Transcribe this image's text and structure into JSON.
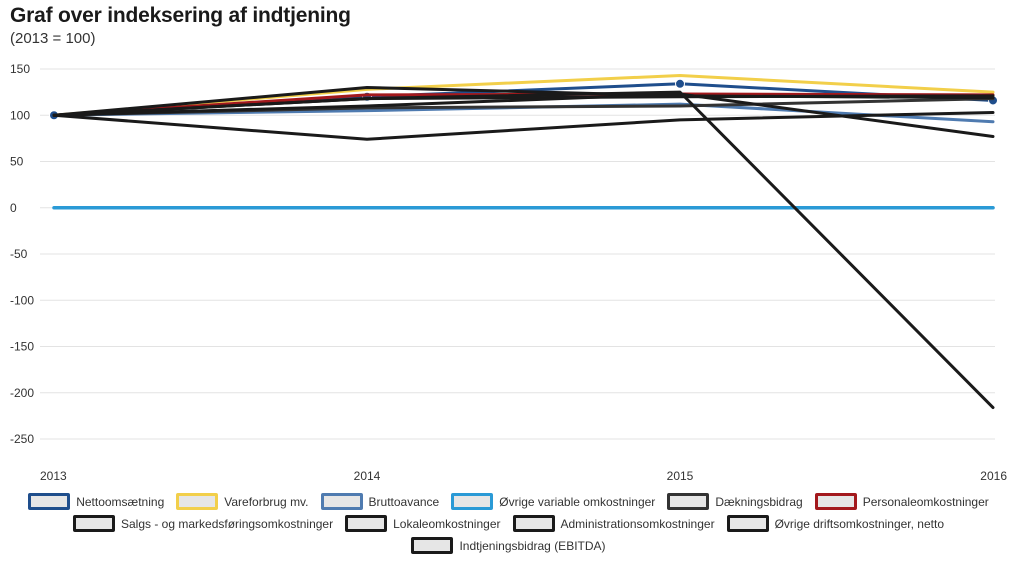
{
  "title": "Graf over indeksering af indtjening",
  "subtitle": "(2013 = 100)",
  "chart_data": {
    "type": "line",
    "title": "Graf over indeksering af indtjening",
    "subtitle": "(2013 = 100)",
    "x": [
      "2013",
      "2014",
      "2015",
      "2016"
    ],
    "ylim": [
      -250,
      150
    ],
    "yticks": [
      150,
      100,
      50,
      0,
      -50,
      -100,
      -150,
      -200,
      -250
    ],
    "grid": true,
    "legend_position": "bottom",
    "series": [
      {
        "name": "Nettoomsætning",
        "values": [
          100,
          120,
          134,
          116
        ],
        "color": "#1f4e8c",
        "markers": true
      },
      {
        "name": "Vareforbrug mv.",
        "values": [
          100,
          128,
          143,
          125
        ],
        "color": "#f2cf4a",
        "markers": false
      },
      {
        "name": "Bruttoavance",
        "values": [
          100,
          105,
          112,
          93
        ],
        "color": "#4f7bb0",
        "markers": false
      },
      {
        "name": "Øvrige variable omkostninger",
        "values": [
          0,
          0,
          0,
          0
        ],
        "color": "#2a9ad6",
        "markers": false
      },
      {
        "name": "Dækningsbidrag",
        "values": [
          100,
          108,
          110,
          118
        ],
        "color": "#333333",
        "markers": false
      },
      {
        "name": "Personaleomkostninger",
        "values": [
          100,
          122,
          123,
          122
        ],
        "color": "#a3191d",
        "markers": false
      },
      {
        "name": "Salgs - og markedsføringsomkostninger",
        "values": [
          100,
          74,
          95,
          103
        ],
        "color": "#1a1a1a",
        "markers": false
      },
      {
        "name": "Lokaleomkostninger",
        "values": [
          100,
          130,
          121,
          119
        ],
        "color": "#1a1a1a",
        "markers": false
      },
      {
        "name": "Administrationsomkostninger",
        "values": [
          100,
          110,
          123,
          77
        ],
        "color": "#1a1a1a",
        "markers": false
      },
      {
        "name": "Øvrige driftsomkostninger, netto",
        "values": [
          100,
          118,
          120,
          121
        ],
        "color": "#1a1a1a",
        "markers": false
      },
      {
        "name": "Indtjeningsbidrag (EBITDA)",
        "values": [
          100,
          118,
          125,
          -216
        ],
        "color": "#1a1a1a",
        "markers": false
      }
    ]
  },
  "legend_rows": [
    [
      {
        "name": "Nettoomsætning",
        "border": "#1f4e8c",
        "fill": "#e6e6e6"
      },
      {
        "name": "Vareforbrug mv.",
        "border": "#f2cf4a",
        "fill": "#e6e6e6"
      },
      {
        "name": "Bruttoavance",
        "border": "#4f7bb0",
        "fill": "#e6e6e6"
      },
      {
        "name": "Øvrige variable omkostninger",
        "border": "#2a9ad6",
        "fill": "#e6e6e6"
      },
      {
        "name": "Dækningsbidrag",
        "border": "#333333",
        "fill": "#e6e6e6"
      },
      {
        "name": "Personaleomkostninger",
        "border": "#a3191d",
        "fill": "#e6e6e6"
      }
    ],
    [
      {
        "name": "Salgs - og markedsføringsomkostninger",
        "border": "#1a1a1a",
        "fill": "#e6e6e6"
      },
      {
        "name": "Lokaleomkostninger",
        "border": "#1a1a1a",
        "fill": "#e6e6e6"
      },
      {
        "name": "Administrationsomkostninger",
        "border": "#1a1a1a",
        "fill": "#e6e6e6"
      },
      {
        "name": "Øvrige driftsomkostninger, netto",
        "border": "#1a1a1a",
        "fill": "#e6e6e6"
      }
    ],
    [
      {
        "name": "Indtjeningsbidrag (EBITDA)",
        "border": "#1a1a1a",
        "fill": "#e6e6e6"
      }
    ]
  ]
}
